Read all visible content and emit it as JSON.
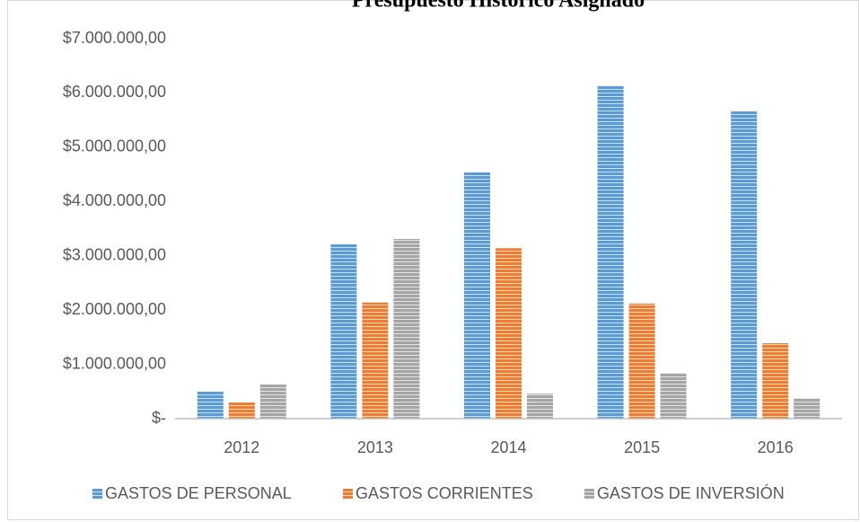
{
  "chart_data": {
    "type": "bar",
    "title": "Presupuesto Histórico Asignado",
    "categories": [
      "2012",
      "2013",
      "2014",
      "2015",
      "2016"
    ],
    "series": [
      {
        "name": "GASTOS DE PERSONAL",
        "color": "#5b9bd5",
        "values": [
          500000,
          3210000,
          4540000,
          6130000,
          5660000
        ]
      },
      {
        "name": "GASTOS CORRIENTES",
        "color": "#ed7d31",
        "values": [
          300000,
          2140000,
          3140000,
          2120000,
          1390000
        ]
      },
      {
        "name": "GASTOS DE INVERSIÓN",
        "color": "#a5a5a5",
        "values": [
          630000,
          3310000,
          460000,
          840000,
          380000
        ]
      }
    ],
    "ylim": [
      0,
      7000000
    ],
    "yticks": [
      {
        "value": 0,
        "label": "$-"
      },
      {
        "value": 1000000,
        "label": "$1.000.000,00"
      },
      {
        "value": 2000000,
        "label": "$2.000.000,00"
      },
      {
        "value": 3000000,
        "label": "$3.000.000,00"
      },
      {
        "value": 4000000,
        "label": "$4.000.000,00"
      },
      {
        "value": 5000000,
        "label": "$5.000.000,00"
      },
      {
        "value": 6000000,
        "label": "$6.000.000,00"
      },
      {
        "value": 7000000,
        "label": "$7.000.000,00"
      }
    ],
    "grid": false,
    "legend": "bottom"
  }
}
